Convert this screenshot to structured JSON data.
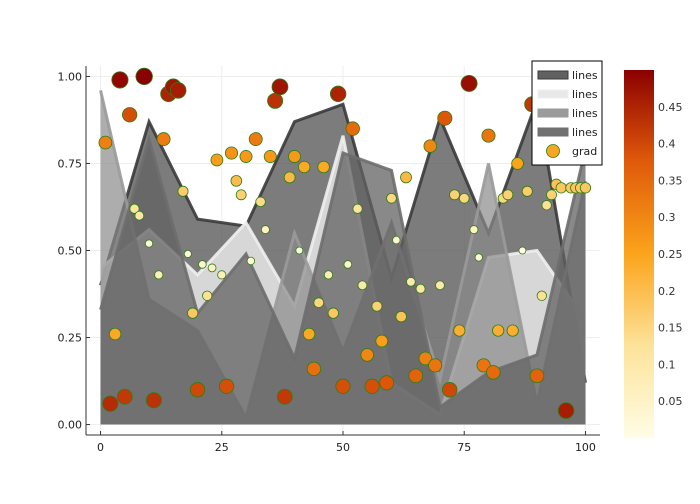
{
  "chart_data": {
    "type": "area",
    "title": "",
    "xlabel": "",
    "ylabel": "",
    "xlim": [
      -3,
      103
    ],
    "ylim": [
      -0.03,
      1.03
    ],
    "x_ticks": [
      0,
      25,
      50,
      75,
      100
    ],
    "x_tick_labels": [
      "0",
      "25",
      "50",
      "75",
      "100"
    ],
    "y_ticks": [
      0,
      0.25,
      0.5,
      0.75,
      1.0
    ],
    "y_tick_labels": [
      "0.00",
      "0.25",
      "0.50",
      "0.75",
      "1.00"
    ],
    "grid": true,
    "legend_position": "top-right",
    "series": [
      {
        "name": "lines",
        "kind": "filled-line",
        "color": "#3a3a3a",
        "fill": "#505050",
        "fill_opacity": 0.75,
        "x": [
          0,
          10,
          20,
          30,
          40,
          50,
          60,
          70,
          80,
          90,
          100
        ],
        "y": [
          0.4,
          0.87,
          0.59,
          0.57,
          0.87,
          0.92,
          0.42,
          0.88,
          0.55,
          0.93,
          0.12
        ]
      },
      {
        "name": "lines",
        "kind": "filled-line",
        "color": "#f0f0f0",
        "fill": "#e8e8e8",
        "fill_opacity": 0.85,
        "x": [
          0,
          10,
          20,
          30,
          40,
          50,
          60,
          70,
          80,
          90,
          100
        ],
        "y": [
          0.45,
          0.56,
          0.43,
          0.58,
          0.34,
          0.83,
          0.12,
          0.03,
          0.48,
          0.5,
          0.3
        ]
      },
      {
        "name": "lines",
        "kind": "filled-line",
        "color": "#9a9a9a",
        "fill": "#8a8a8a",
        "fill_opacity": 0.7,
        "x": [
          0,
          10,
          20,
          30,
          40,
          50,
          60,
          70,
          80,
          90,
          100
        ],
        "y": [
          0.96,
          0.36,
          0.27,
          0.02,
          0.55,
          0.21,
          0.58,
          0.13,
          0.75,
          0.06,
          0.7
        ]
      },
      {
        "name": "lines",
        "kind": "filled-line",
        "color": "#6e6e6e",
        "fill": "#626262",
        "fill_opacity": 0.75,
        "x": [
          0,
          10,
          20,
          30,
          40,
          50,
          60,
          70,
          80,
          90,
          100
        ],
        "y": [
          0.33,
          0.82,
          0.32,
          0.49,
          0.19,
          0.78,
          0.73,
          0.05,
          0.15,
          0.2,
          0.79
        ]
      }
    ],
    "scatter": {
      "name": "grad",
      "legend_color": "#f5a623",
      "colorbar_range": [
        0,
        0.5
      ],
      "colorbar_ticks": [
        0.05,
        0.1,
        0.15,
        0.2,
        0.25,
        0.3,
        0.35,
        0.4,
        0.45
      ],
      "colorbar_tick_labels": [
        "0.05",
        "0.1",
        "0.15",
        "0.2",
        "0.25",
        "0.3",
        "0.35",
        "0.4",
        "0.45"
      ],
      "x": [
        1,
        2,
        3,
        4,
        5,
        6,
        7,
        8,
        9,
        10,
        11,
        12,
        13,
        14,
        15,
        16,
        17,
        18,
        19,
        20,
        21,
        22,
        23,
        24,
        25,
        26,
        27,
        28,
        29,
        30,
        31,
        32,
        33,
        34,
        35,
        36,
        37,
        38,
        39,
        40,
        41,
        42,
        43,
        44,
        45,
        46,
        47,
        48,
        49,
        50,
        51,
        52,
        53,
        54,
        55,
        56,
        57,
        58,
        59,
        60,
        61,
        62,
        63,
        64,
        65,
        66,
        67,
        68,
        69,
        70,
        71,
        72,
        73,
        74,
        75,
        76,
        77,
        78,
        79,
        80,
        81,
        82,
        83,
        84,
        85,
        86,
        87,
        88,
        89,
        90,
        91,
        92,
        93,
        94,
        95,
        96,
        97,
        98,
        99,
        100
      ],
      "y": [
        0.81,
        0.06,
        0.26,
        0.99,
        0.08,
        0.89,
        0.62,
        0.6,
        1.0,
        0.52,
        0.07,
        0.43,
        0.82,
        0.95,
        0.97,
        0.96,
        0.67,
        0.49,
        0.32,
        0.1,
        0.46,
        0.37,
        0.45,
        0.76,
        0.43,
        0.11,
        0.78,
        0.7,
        0.66,
        0.77,
        0.47,
        0.82,
        0.64,
        0.56,
        0.77,
        0.93,
        0.97,
        0.08,
        0.71,
        0.77,
        0.5,
        0.74,
        0.26,
        0.16,
        0.35,
        0.74,
        0.43,
        0.32,
        0.95,
        0.11,
        0.46,
        0.85,
        0.62,
        0.4,
        0.2,
        0.11,
        0.34,
        0.24,
        0.12,
        0.65,
        0.53,
        0.31,
        0.71,
        0.41,
        0.14,
        0.39,
        0.19,
        0.8,
        0.17,
        0.4,
        0.88,
        0.1,
        0.66,
        0.27,
        0.65,
        0.98,
        0.56,
        0.48,
        0.17,
        0.83,
        0.15,
        0.27,
        0.65,
        0.66,
        0.27,
        0.75,
        0.5,
        0.67,
        0.92,
        0.14,
        0.37,
        0.63,
        0.66,
        0.69,
        0.68,
        0.04,
        0.68,
        0.68,
        0.68,
        0.68
      ]
    }
  }
}
